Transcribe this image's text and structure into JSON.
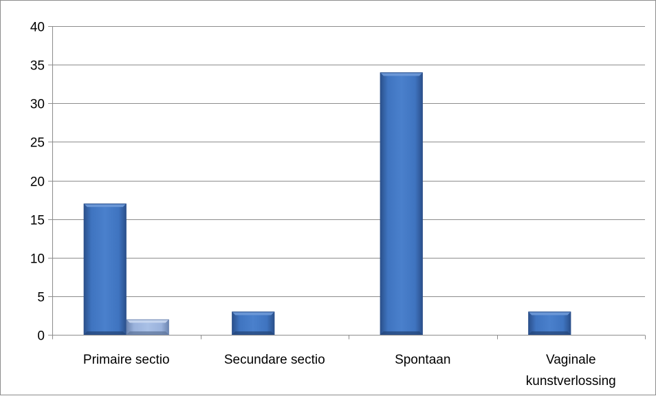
{
  "chart_data": {
    "type": "bar",
    "title": "",
    "xlabel": "",
    "ylabel": "",
    "ylim": [
      0,
      40
    ],
    "yticks": [
      0,
      5,
      10,
      15,
      20,
      25,
      30,
      35,
      40
    ],
    "grid": true,
    "legend": "none",
    "categories": [
      [
        "Primaire sectio"
      ],
      [
        "Secundare sectio"
      ],
      [
        "Spontaan"
      ],
      [
        "Vaginale",
        "kunstverlossing"
      ]
    ],
    "series": [
      {
        "values": [
          17,
          3,
          34,
          3
        ],
        "color": "#3a6cb4"
      },
      {
        "values": [
          2,
          0,
          0,
          0
        ],
        "color": "#8ba3cc"
      }
    ]
  }
}
